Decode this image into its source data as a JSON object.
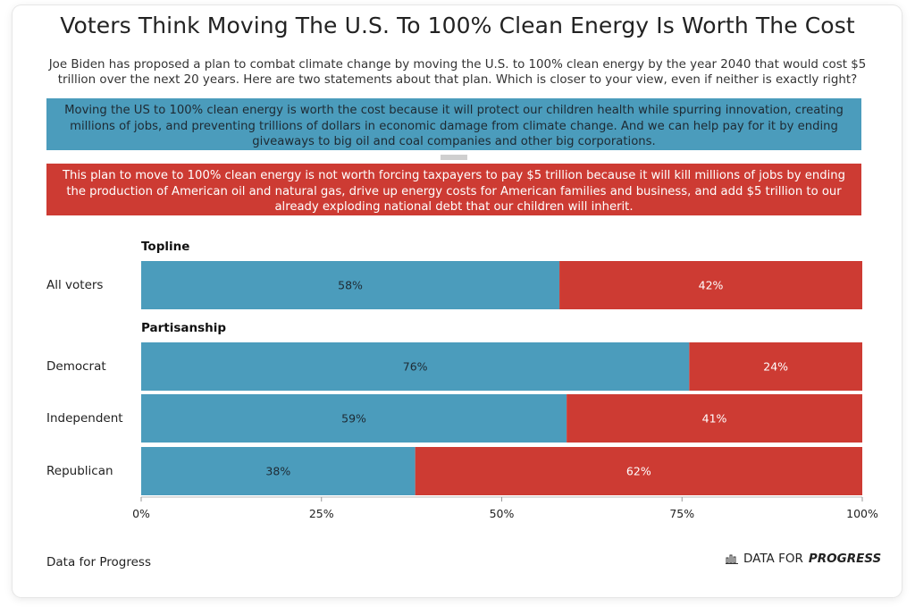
{
  "title": "Voters Think Moving The U.S. To 100% Clean Energy Is Worth The Cost",
  "subtitle": "Joe Biden has proposed a plan to combat climate change by moving the U.S. to 100% clean energy by the year 2040 that would cost $5 trillion over the next 20 years. Here are two statements about that plan. Which is closer to your view, even if neither is exactly right?",
  "statements": {
    "blue": "Moving the US to 100% clean energy is worth the cost because it will protect our children health while spurring innovation, creating millions of jobs, and preventing trillions of dollars in economic damage from climate change. And we can help pay for it by ending giveaways to big oil and coal companies and other big corporations.",
    "red": "This plan to move to 100% clean energy is not worth forcing taxpayers to pay $5 trillion because it will kill millions of jobs by ending the production of American oil and natural gas, drive up energy costs for American families and business, and add $5 trillion to our already exploding national debt that our children will inherit."
  },
  "colors": {
    "blue": "#4b9cbc",
    "red": "#cd3b33"
  },
  "sections": {
    "topline": "Topline",
    "partisanship": "Partisanship"
  },
  "footer": {
    "source": "Data for Progress",
    "brand_prefix": "DATA FOR",
    "brand_bold": "PROGRESS",
    "brand_icon": "bar-chart-icon"
  },
  "chart_data": {
    "type": "bar",
    "orientation": "horizontal",
    "stacked": true,
    "categories": [
      "All voters",
      "Democrat",
      "Independent",
      "Republican"
    ],
    "groups": [
      {
        "name": "Topline",
        "categories": [
          "All voters"
        ]
      },
      {
        "name": "Partisanship",
        "categories": [
          "Democrat",
          "Independent",
          "Republican"
        ]
      }
    ],
    "series": [
      {
        "color": "#4b9cbc",
        "values": [
          58,
          76,
          59,
          38
        ]
      },
      {
        "color": "#cd3b33",
        "values": [
          42,
          24,
          41,
          62
        ]
      }
    ],
    "data_labels": [
      [
        "58%",
        "76%",
        "59%",
        "38%"
      ],
      [
        "42%",
        "24%",
        "41%",
        "62%"
      ]
    ],
    "xlim": [
      0,
      100
    ],
    "xticks": [
      0,
      25,
      50,
      75,
      100
    ],
    "xtick_labels": [
      "0%",
      "25%",
      "50%",
      "75%",
      "100%"
    ],
    "legend": "none",
    "grid": false
  }
}
